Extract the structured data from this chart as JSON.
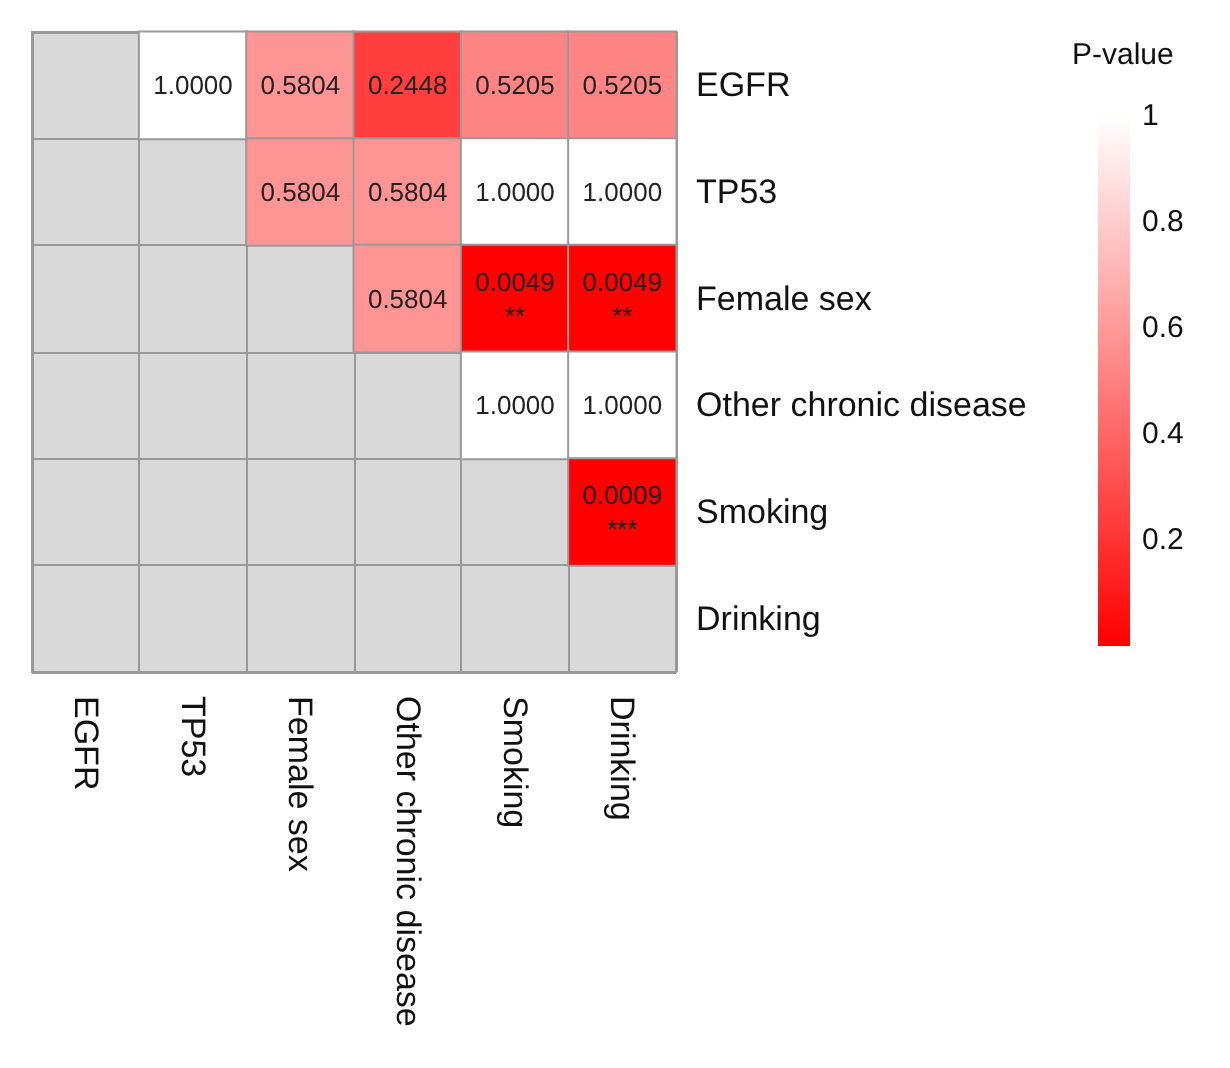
{
  "chart_data": {
    "type": "heatmap",
    "clabel": "P-value",
    "categories": [
      "EGFR",
      "TP53",
      "Female sex",
      "Other chronic disease",
      "Smoking",
      "Drinking"
    ],
    "y_categories": [
      "EGFR",
      "TP53",
      "Female sex",
      "Other chronic disease",
      "Smoking",
      "Drinking"
    ],
    "cells": [
      [
        null,
        1,
        0.5804,
        0.2448,
        0.5205,
        0.5205
      ],
      [
        null,
        null,
        0.5804,
        0.5804,
        1,
        1
      ],
      [
        null,
        null,
        null,
        0.5804,
        0.0049,
        0.0049
      ],
      [
        null,
        null,
        null,
        null,
        1,
        1
      ],
      [
        null,
        null,
        null,
        null,
        null,
        0.0009
      ],
      [
        null,
        null,
        null,
        null,
        null,
        null
      ]
    ],
    "cell_labels": [
      [
        null,
        "1.0000",
        "0.5804",
        "0.2448",
        "0.5205",
        "0.5205"
      ],
      [
        null,
        null,
        "0.5804",
        "0.5804",
        "1.0000",
        "1.0000"
      ],
      [
        null,
        null,
        null,
        "0.5804",
        "0.0049\n**",
        "0.0049\n**"
      ],
      [
        null,
        null,
        null,
        null,
        "1.0000",
        "1.0000"
      ],
      [
        null,
        null,
        null,
        null,
        null,
        "0.0009\n***"
      ],
      [
        null,
        null,
        null,
        null,
        null,
        null
      ]
    ],
    "colors": [
      "#ff0000",
      "#ffffff"
    ],
    "clim": [
      0,
      1
    ],
    "cticks": [
      0.2,
      0.4,
      0.6,
      0.8,
      1
    ]
  }
}
